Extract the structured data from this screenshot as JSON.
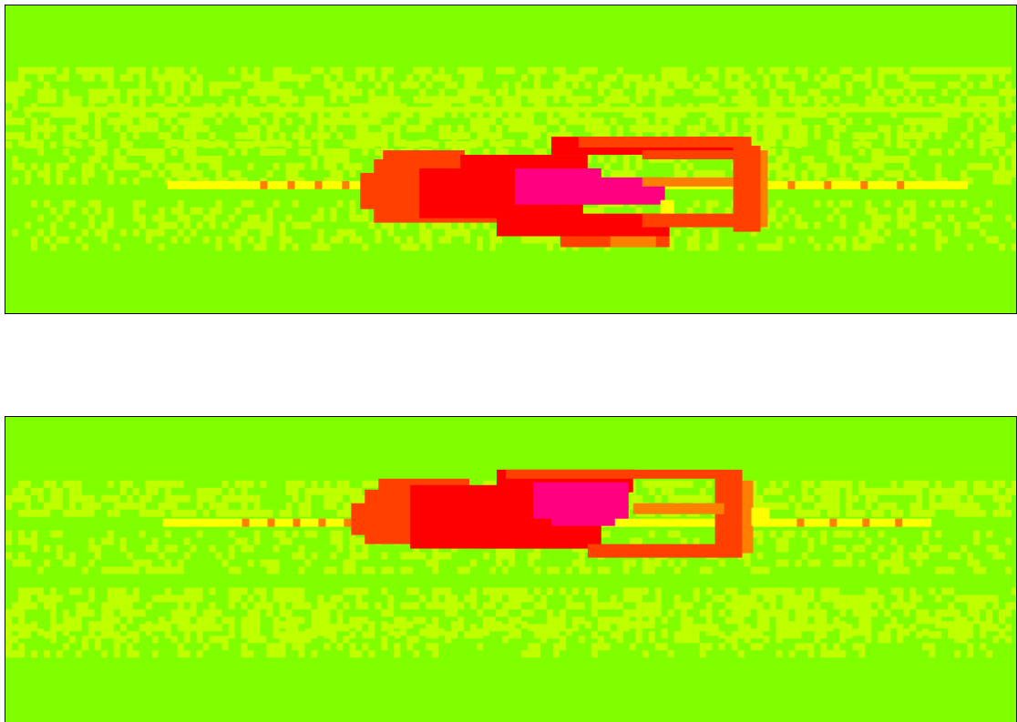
{
  "chart_data": [
    {
      "type": "heatmap",
      "title": "",
      "xlabel": "",
      "ylabel": "",
      "colors": {
        "background": "#80ff00",
        "level1": "#bfff00",
        "level2": "#ffff00",
        "level3": "#ff8000",
        "level4": "#ff4000",
        "level5": "#ff0000",
        "level6": "#ff0080"
      }
    },
    {
      "type": "heatmap",
      "title": "",
      "xlabel": "",
      "ylabel": "",
      "colors": {
        "background": "#80ff00",
        "level1": "#bfff00",
        "level2": "#ffff00",
        "level3": "#ff8000",
        "level4": "#ff4000",
        "level5": "#ff0000",
        "level6": "#ff0080"
      }
    }
  ]
}
